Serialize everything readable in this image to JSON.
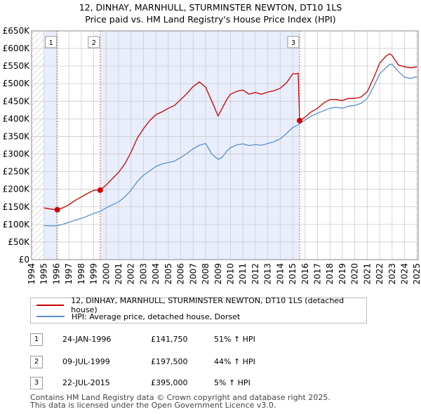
{
  "title": {
    "line1": "12, DINHAY, MARNHULL, STURMINSTER NEWTON, DT10 1LS",
    "line2": "Price paid vs. HM Land Registry's House Price Index (HPI)"
  },
  "colors": {
    "property_line": "#cc0000",
    "hpi_line": "#5b8fd0",
    "shade": "#e8eefb",
    "marker_line": "#e06666",
    "grid": "#cccccc"
  },
  "legend": {
    "property_label": "12, DINHAY, MARNHULL, STURMINSTER NEWTON, DT10 1LS (detached house)",
    "hpi_label": "HPI: Average price, detached house, Dorset"
  },
  "sales": [
    {
      "num": "1",
      "date": "24-JAN-1996",
      "price": "£141,750",
      "hpi": "51% ↑ HPI"
    },
    {
      "num": "2",
      "date": "09-JUL-1999",
      "price": "£197,500",
      "hpi": "44% ↑ HPI"
    },
    {
      "num": "3",
      "date": "22-JUL-2015",
      "price": "£395,000",
      "hpi": "5% ↑ HPI"
    }
  ],
  "footer": {
    "line1": "Contains HM Land Registry data © Crown copyright and database right 2025.",
    "line2": "This data is licensed under the Open Government Licence v3.0."
  },
  "chart_data": {
    "type": "line",
    "xlim": [
      1994,
      2025.1
    ],
    "ylim": [
      0,
      650000
    ],
    "yticks": [
      0,
      50000,
      100000,
      150000,
      200000,
      250000,
      300000,
      350000,
      400000,
      450000,
      500000,
      550000,
      600000,
      650000
    ],
    "ytick_labels": [
      "£0",
      "£50K",
      "£100K",
      "£150K",
      "£200K",
      "£250K",
      "£300K",
      "£350K",
      "£400K",
      "£450K",
      "£500K",
      "£550K",
      "£600K",
      "£650K"
    ],
    "xticks": [
      1994,
      1995,
      1996,
      1997,
      1998,
      1999,
      2000,
      2001,
      2002,
      2003,
      2004,
      2005,
      2006,
      2007,
      2008,
      2009,
      2010,
      2011,
      2012,
      2013,
      2014,
      2015,
      2016,
      2017,
      2018,
      2019,
      2020,
      2021,
      2022,
      2023,
      2024,
      2025
    ],
    "xtick_labels": [
      "1994",
      "1995",
      "1996",
      "1997",
      "1998",
      "1999",
      "2000",
      "2001",
      "2002",
      "2003",
      "2004",
      "2005",
      "2006",
      "2007",
      "2008",
      "2009",
      "2010",
      "2011",
      "2012",
      "2013",
      "2014",
      "2015",
      "2016",
      "2017",
      "2018",
      "2019",
      "2020",
      "2021",
      "2022",
      "2023",
      "2024",
      "2025"
    ],
    "shaded_ranges": [
      [
        1995.0,
        1996.07
      ],
      [
        1999.52,
        2015.56
      ]
    ],
    "hatched_ranges": [
      [
        1994.0,
        1995.0
      ],
      [
        2024.9,
        2025.1
      ]
    ],
    "sale_markers": [
      {
        "label": "1",
        "x": 1996.07,
        "y": 141750
      },
      {
        "label": "2",
        "x": 1999.52,
        "y": 197500
      },
      {
        "label": "3",
        "x": 2015.56,
        "y": 395000
      }
    ],
    "series": [
      {
        "name": "12, DINHAY, MARNHULL, STURMINSTER NEWTON, DT10 1LS (detached house)",
        "color": "#cc0000",
        "x": [
          1995.0,
          1995.5,
          1996.07,
          1996.5,
          1997.0,
          1997.5,
          1998.0,
          1998.5,
          1999.0,
          1999.52,
          2000.0,
          2000.5,
          2001.0,
          2001.5,
          2002.0,
          2002.5,
          2003.0,
          2003.5,
          2004.0,
          2004.5,
          2005.0,
          2005.5,
          2006.0,
          2006.5,
          2007.0,
          2007.5,
          2008.0,
          2008.5,
          2009.0,
          2009.3,
          2009.7,
          2010.0,
          2010.5,
          2011.0,
          2011.5,
          2012.0,
          2012.5,
          2013.0,
          2013.5,
          2014.0,
          2014.5,
          2015.0,
          2015.3,
          2015.45,
          2015.56,
          2016.0,
          2016.5,
          2017.0,
          2017.5,
          2018.0,
          2018.5,
          2019.0,
          2019.5,
          2020.0,
          2020.5,
          2021.0,
          2021.5,
          2022.0,
          2022.5,
          2022.8,
          2023.0,
          2023.5,
          2024.0,
          2024.5,
          2025.0
        ],
        "y": [
          147000,
          144000,
          141750,
          147000,
          156000,
          168000,
          178000,
          188000,
          197000,
          197500,
          212000,
          230000,
          248000,
          272000,
          305000,
          345000,
          372000,
          395000,
          412000,
          420000,
          430000,
          438000,
          455000,
          472000,
          492000,
          505000,
          490000,
          450000,
          408000,
          428000,
          455000,
          470000,
          478000,
          482000,
          470000,
          475000,
          470000,
          476000,
          480000,
          487000,
          502000,
          528000,
          528000,
          530000,
          395000,
          405000,
          420000,
          430000,
          445000,
          455000,
          455000,
          452000,
          458000,
          458000,
          462000,
          477000,
          515000,
          558000,
          578000,
          585000,
          580000,
          553000,
          548000,
          545000,
          548000
        ]
      },
      {
        "name": "HPI: Average price, detached house, Dorset",
        "color": "#5b8fd0",
        "x": [
          1995.0,
          1995.5,
          1996.0,
          1996.5,
          1997.0,
          1997.5,
          1998.0,
          1998.5,
          1999.0,
          1999.5,
          2000.0,
          2000.5,
          2001.0,
          2001.5,
          2002.0,
          2002.5,
          2003.0,
          2003.5,
          2004.0,
          2004.5,
          2005.0,
          2005.5,
          2006.0,
          2006.5,
          2007.0,
          2007.5,
          2008.0,
          2008.5,
          2009.0,
          2009.3,
          2009.7,
          2010.0,
          2010.5,
          2011.0,
          2011.5,
          2012.0,
          2012.5,
          2013.0,
          2013.5,
          2014.0,
          2014.5,
          2015.0,
          2015.5,
          2016.0,
          2016.5,
          2017.0,
          2017.5,
          2018.0,
          2018.5,
          2019.0,
          2019.5,
          2020.0,
          2020.5,
          2021.0,
          2021.5,
          2022.0,
          2022.5,
          2022.8,
          2023.0,
          2023.5,
          2024.0,
          2024.5,
          2025.0
        ],
        "y": [
          97000,
          96000,
          96000,
          100000,
          106000,
          112000,
          117000,
          124000,
          131000,
          137000,
          147000,
          156000,
          164000,
          178000,
          197000,
          222000,
          240000,
          252000,
          265000,
          272000,
          276000,
          280000,
          290000,
          302000,
          315000,
          325000,
          330000,
          300000,
          285000,
          290000,
          308000,
          318000,
          326000,
          329000,
          324000,
          327000,
          325000,
          330000,
          335000,
          343000,
          358000,
          375000,
          384000,
          397000,
          408000,
          416000,
          423000,
          430000,
          433000,
          430000,
          436000,
          438000,
          444000,
          458000,
          490000,
          528000,
          545000,
          555000,
          555000,
          535000,
          518000,
          515000,
          520000
        ]
      }
    ]
  }
}
